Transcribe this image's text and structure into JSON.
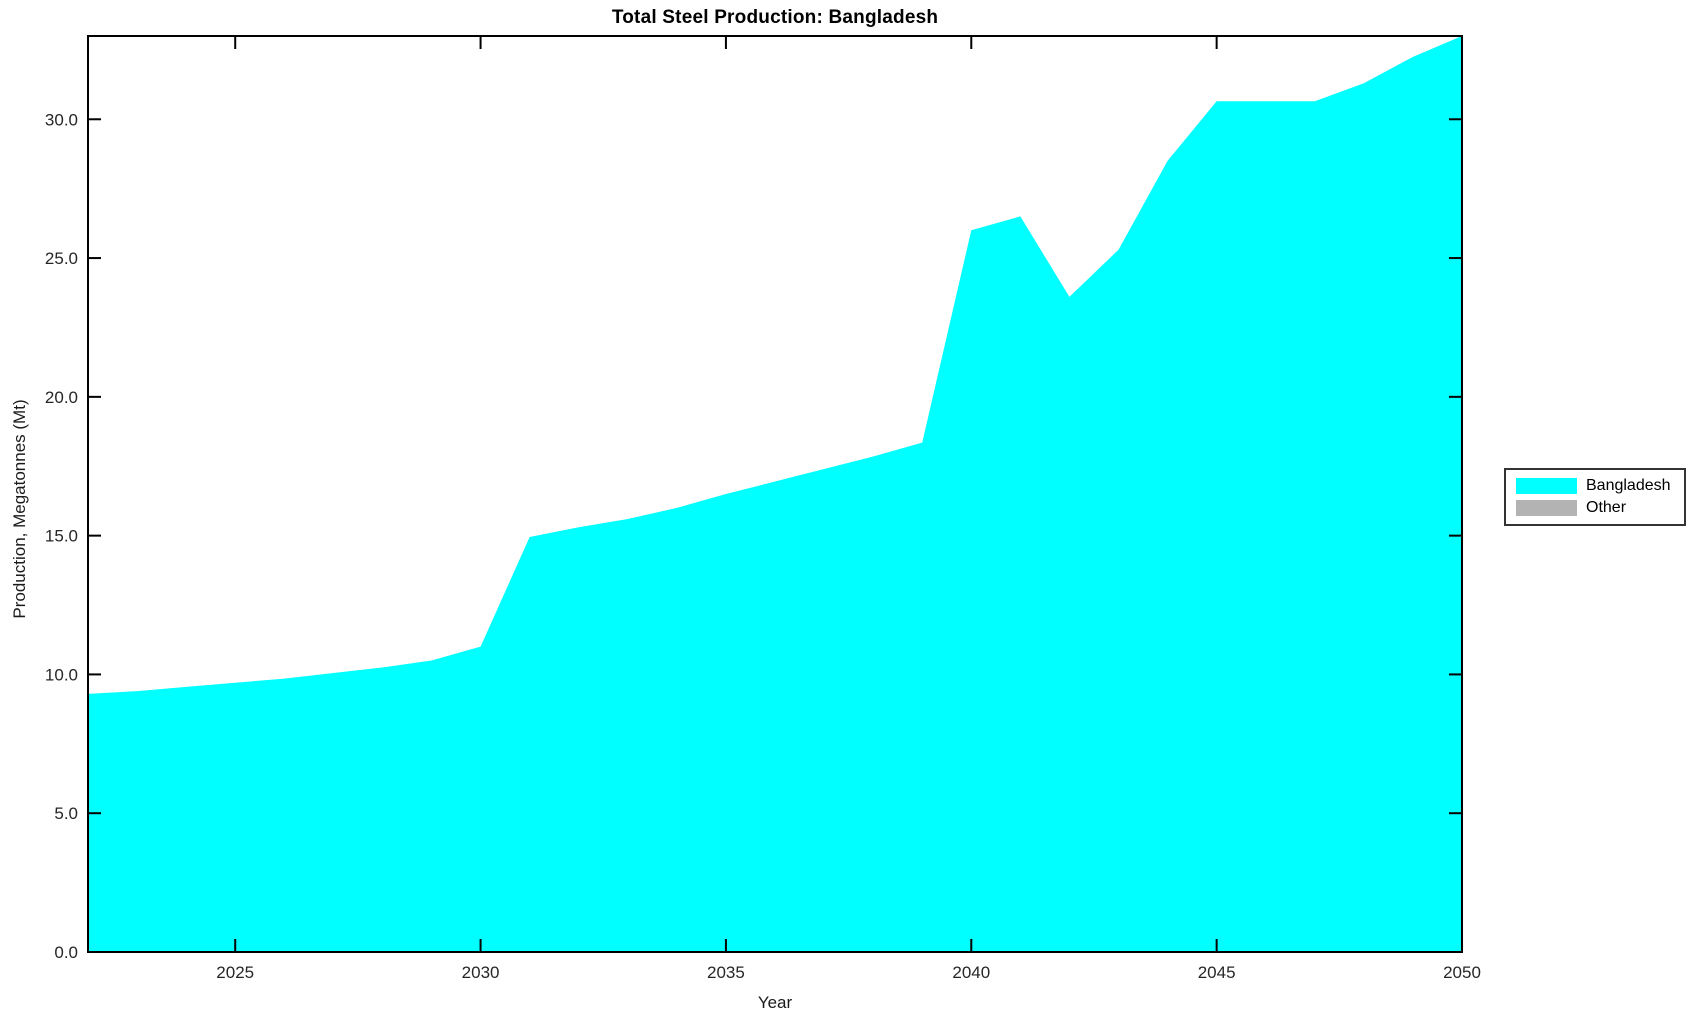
{
  "title": "Total Steel Production: Bangladesh",
  "chart_data": {
    "type": "area",
    "title": "Total Steel Production: Bangladesh",
    "xlabel": "Year",
    "ylabel": "Production, Megatonnes (Mt)",
    "x": [
      2022,
      2023,
      2024,
      2025,
      2026,
      2027,
      2028,
      2029,
      2030,
      2031,
      2032,
      2033,
      2034,
      2035,
      2036,
      2037,
      2038,
      2039,
      2040,
      2041,
      2042,
      2043,
      2044,
      2045,
      2046,
      2047,
      2048,
      2049,
      2050
    ],
    "series": [
      {
        "name": "Bangladesh",
        "color": "#00FFFF",
        "values": [
          9.3,
          9.4,
          9.55,
          9.7,
          9.85,
          10.05,
          10.25,
          10.5,
          11.0,
          14.95,
          15.3,
          15.6,
          16.0,
          16.5,
          16.95,
          17.4,
          17.85,
          18.35,
          26.0,
          26.5,
          23.6,
          25.3,
          28.5,
          30.65,
          30.65,
          30.65,
          31.3,
          32.25,
          33.0
        ]
      }
    ],
    "xlim": [
      2022,
      2050
    ],
    "ylim": [
      0,
      33
    ],
    "xticks": [
      2025,
      2030,
      2035,
      2040,
      2045,
      2050
    ],
    "xtick_labels": [
      "2025",
      "2030",
      "2035",
      "2040",
      "2045",
      "2050"
    ],
    "yticks": [
      0,
      5,
      10,
      15,
      20,
      25,
      30
    ],
    "ytick_labels": [
      "0.0",
      "5.0",
      "10.0",
      "15.0",
      "20.0",
      "25.0",
      "30.0"
    ],
    "grid": false,
    "background_color": "#FFFFFF",
    "axis_color": "#000000",
    "legend": {
      "position": "outside-right",
      "entries": [
        {
          "label": "Bangladesh",
          "color": "#00FFFF"
        },
        {
          "label": "Other",
          "color": "#B3B3B3"
        }
      ]
    }
  }
}
